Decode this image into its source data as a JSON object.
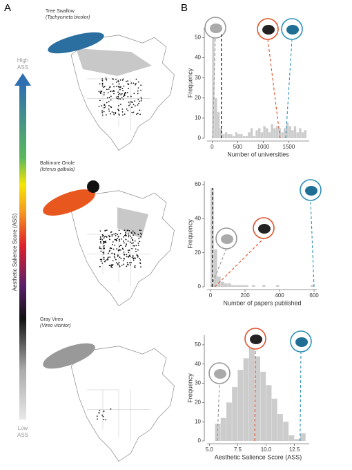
{
  "panel_a": {
    "label": "A",
    "gradient_top": [
      "High",
      "ASS"
    ],
    "gradient_bottom": [
      "Low",
      "ASS"
    ],
    "gradient_label": "Aesthetic Salience Score (ASS)",
    "birds": [
      {
        "name": "Tree Swallow",
        "latin": "(Tachycineta bicolor)"
      },
      {
        "name": "Baltimore Oriole",
        "latin": "(Icterus galbula)"
      },
      {
        "name": "Gray Vireo",
        "latin": "(Vireo vicinior)"
      }
    ]
  },
  "panel_b": {
    "label": "B"
  },
  "chart_data": [
    {
      "type": "histogram",
      "x_label": "Number of universities",
      "y_label": "Frequency",
      "color": "#cccccc",
      "bins": [
        0,
        50,
        100,
        150,
        200,
        250,
        300,
        350,
        400,
        450,
        500,
        550,
        600,
        650,
        700,
        750,
        800,
        850,
        900,
        950,
        1000,
        1050,
        1100,
        1150,
        1200,
        1250,
        1300,
        1350,
        1400,
        1450,
        1500,
        1550,
        1600,
        1650,
        1700,
        1750,
        1800,
        1850
      ],
      "values": [
        50,
        20,
        13,
        5,
        2,
        3,
        2,
        2,
        1,
        3,
        2,
        2,
        1,
        1,
        3,
        5,
        1,
        4,
        5,
        3,
        6,
        5,
        3,
        7,
        5,
        6,
        5,
        3,
        5,
        8,
        6,
        4,
        6,
        3,
        5,
        3,
        4
      ],
      "xlim": [
        -100,
        1900
      ],
      "xticks": [
        0,
        500,
        1000,
        1500
      ],
      "ylim": [
        0,
        55
      ],
      "yticks": [
        0,
        10,
        20,
        30,
        40,
        50
      ],
      "reference_lines": [
        {
          "x": 10,
          "color": "#999999"
        },
        {
          "x": 180,
          "color": "#000000"
        },
        {
          "x": 1330,
          "color": "#e0502a"
        },
        {
          "x": 1440,
          "color": "#2a8fb5"
        }
      ]
    },
    {
      "type": "histogram",
      "x_label": "Number of papers published",
      "y_label": "Frequency",
      "color": "#cccccc",
      "bins": [
        0,
        20,
        40,
        60,
        80,
        100,
        120,
        140,
        160,
        180,
        200,
        220,
        240,
        260,
        280,
        300,
        320,
        340,
        360,
        380,
        400,
        420,
        440,
        460,
        480,
        500,
        520,
        540,
        560,
        580,
        600
      ],
      "values": [
        58,
        22,
        6,
        3,
        2,
        2,
        1,
        1,
        1,
        1,
        1,
        0,
        1,
        0,
        0,
        1,
        0,
        0,
        0,
        1,
        0,
        0,
        0,
        0,
        0,
        0,
        0,
        0,
        0,
        1
      ],
      "xlim": [
        -20,
        620
      ],
      "xticks": [
        0,
        200,
        400,
        600
      ],
      "ylim": [
        0,
        62
      ],
      "yticks": [
        0,
        20,
        40,
        60
      ],
      "reference_lines": [
        {
          "x": 3,
          "color": "#999999"
        },
        {
          "x": 12,
          "color": "#000000"
        },
        {
          "x": 25,
          "color": "#e0502a"
        },
        {
          "x": 600,
          "color": "#2a8fb5"
        }
      ]
    },
    {
      "type": "histogram",
      "x_label": "Aesthetic Salience Score (ASS)",
      "y_label": "Frequency",
      "color": "#cccccc",
      "bins": [
        5.5,
        6,
        6.5,
        7,
        7.5,
        8,
        8.5,
        9,
        9.5,
        10,
        10.5,
        11,
        11.5,
        12,
        12.5,
        13,
        13.5
      ],
      "values": [
        9,
        12,
        20,
        28,
        37,
        43,
        51,
        44,
        36,
        29,
        22,
        14,
        10,
        3,
        1,
        4
      ],
      "xlim": [
        4.8,
        13.8
      ],
      "xticks": [
        {
          "value": 5,
          "label": "5.0"
        },
        7.5,
        {
          "value": 10,
          "label": "10.0"
        },
        12.5
      ],
      "ylim": [
        0,
        55
      ],
      "yticks": [
        0,
        10,
        20,
        30,
        40,
        50
      ],
      "reference_lines": [
        {
          "x": 5.7,
          "color": "#999999"
        },
        {
          "x": 9.0,
          "color": "#e0502a"
        },
        {
          "x": 13.0,
          "color": "#2a8fb5"
        }
      ]
    }
  ]
}
